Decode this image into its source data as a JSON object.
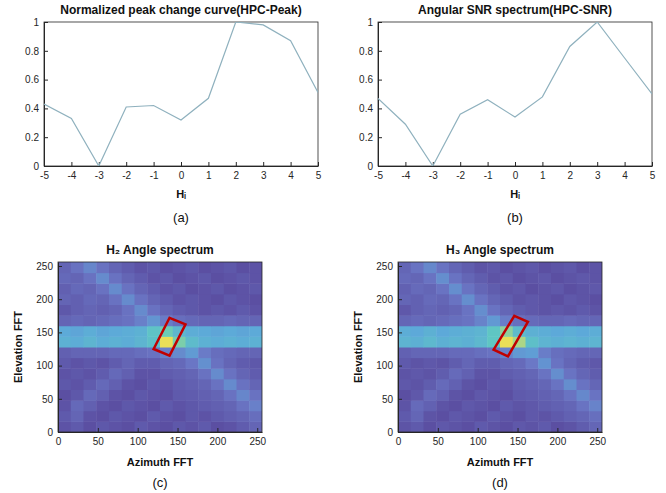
{
  "chart_data": [
    {
      "type": "line",
      "title": "Normalized peak change curve(HPC-Peak)",
      "label": "(a)",
      "xlabel": "Hᵢ",
      "x": [
        -5,
        -4,
        -3,
        -2,
        -1,
        0,
        1,
        2,
        3,
        4,
        5
      ],
      "values": [
        0.43,
        0.33,
        0,
        0.41,
        0.42,
        0.32,
        0.47,
        1.0,
        0.98,
        0.87,
        0.51
      ],
      "color": "#8fb1be",
      "xlim": [
        -5,
        5
      ],
      "ylim": [
        0,
        1
      ],
      "xticks": [
        -5,
        -4,
        -3,
        -2,
        -1,
        0,
        1,
        2,
        3,
        4,
        5
      ],
      "yticks": [
        0,
        0.2,
        0.4,
        0.6,
        0.8,
        1
      ]
    },
    {
      "type": "line",
      "title": "Angular SNR spectrum(HPC-SNR)",
      "label": "(b)",
      "xlabel": "Hᵢ",
      "x": [
        -5,
        -4,
        -3,
        -2,
        -1,
        0,
        1,
        2,
        3,
        4,
        5
      ],
      "values": [
        0.47,
        0.29,
        0,
        0.36,
        0.46,
        0.34,
        0.48,
        0.83,
        1.0,
        0.75,
        0.5
      ],
      "color": "#8fb1be",
      "xlim": [
        -5,
        5
      ],
      "ylim": [
        0,
        1
      ],
      "xticks": [
        -5,
        -4,
        -3,
        -2,
        -1,
        0,
        1,
        2,
        3,
        4,
        5
      ],
      "yticks": [
        0,
        0.2,
        0.4,
        0.6,
        0.8,
        1
      ]
    },
    {
      "type": "heatmap",
      "title": "H₂ Angle spectrum",
      "label": "(c)",
      "xlabel": "Azimuth FFT",
      "ylabel": "Elevation FFT",
      "x_edges": [
        0,
        16,
        32,
        48,
        64,
        80,
        96,
        112,
        128,
        144,
        160,
        176,
        192,
        208,
        224,
        240,
        256
      ],
      "y_edges": [
        0,
        16,
        32,
        48,
        64,
        80,
        96,
        112,
        128,
        144,
        160,
        176,
        192,
        208,
        224,
        240,
        256
      ],
      "z": [
        [
          0.22,
          0.25,
          0.2,
          0.24,
          0.22,
          0.2,
          0.25,
          0.22,
          0.2,
          0.24,
          0.22,
          0.25,
          0.2,
          0.22,
          0.26,
          0.3
        ],
        [
          0.25,
          0.3,
          0.22,
          0.2,
          0.24,
          0.22,
          0.2,
          0.25,
          0.22,
          0.2,
          0.24,
          0.22,
          0.25,
          0.28,
          0.3,
          0.34
        ],
        [
          0.22,
          0.32,
          0.28,
          0.22,
          0.2,
          0.24,
          0.22,
          0.2,
          0.25,
          0.22,
          0.24,
          0.26,
          0.28,
          0.3,
          0.36,
          0.42
        ],
        [
          0.2,
          0.24,
          0.32,
          0.28,
          0.22,
          0.2,
          0.24,
          0.22,
          0.2,
          0.25,
          0.26,
          0.28,
          0.3,
          0.36,
          0.44,
          0.36
        ],
        [
          0.24,
          0.22,
          0.26,
          0.32,
          0.28,
          0.22,
          0.2,
          0.24,
          0.22,
          0.26,
          0.28,
          0.3,
          0.36,
          0.46,
          0.36,
          0.3
        ],
        [
          0.22,
          0.24,
          0.22,
          0.26,
          0.32,
          0.28,
          0.22,
          0.22,
          0.26,
          0.28,
          0.3,
          0.36,
          0.46,
          0.36,
          0.3,
          0.26
        ],
        [
          0.25,
          0.22,
          0.24,
          0.22,
          0.26,
          0.3,
          0.26,
          0.26,
          0.3,
          0.32,
          0.38,
          0.48,
          0.36,
          0.3,
          0.26,
          0.24
        ],
        [
          0.28,
          0.3,
          0.3,
          0.3,
          0.32,
          0.32,
          0.34,
          0.36,
          0.42,
          0.46,
          0.52,
          0.4,
          0.34,
          0.32,
          0.3,
          0.3
        ],
        [
          0.62,
          0.6,
          0.64,
          0.6,
          0.62,
          0.6,
          0.64,
          0.7,
          0.95,
          0.8,
          0.68,
          0.62,
          0.6,
          0.62,
          0.6,
          0.62
        ],
        [
          0.58,
          0.56,
          0.6,
          0.56,
          0.58,
          0.6,
          0.62,
          0.72,
          0.78,
          0.66,
          0.6,
          0.58,
          0.56,
          0.58,
          0.56,
          0.58
        ],
        [
          0.3,
          0.32,
          0.3,
          0.32,
          0.34,
          0.36,
          0.42,
          0.5,
          0.4,
          0.34,
          0.32,
          0.3,
          0.3,
          0.32,
          0.3,
          0.3
        ],
        [
          0.24,
          0.28,
          0.3,
          0.28,
          0.3,
          0.36,
          0.46,
          0.36,
          0.3,
          0.26,
          0.24,
          0.22,
          0.24,
          0.22,
          0.25,
          0.22
        ],
        [
          0.3,
          0.28,
          0.32,
          0.3,
          0.36,
          0.46,
          0.36,
          0.3,
          0.26,
          0.22,
          0.24,
          0.22,
          0.2,
          0.24,
          0.22,
          0.2
        ],
        [
          0.28,
          0.32,
          0.3,
          0.36,
          0.46,
          0.36,
          0.3,
          0.26,
          0.22,
          0.24,
          0.2,
          0.22,
          0.24,
          0.2,
          0.22,
          0.24
        ],
        [
          0.32,
          0.3,
          0.36,
          0.46,
          0.36,
          0.3,
          0.26,
          0.22,
          0.24,
          0.2,
          0.22,
          0.24,
          0.2,
          0.22,
          0.24,
          0.22
        ],
        [
          0.3,
          0.36,
          0.44,
          0.36,
          0.3,
          0.26,
          0.22,
          0.24,
          0.2,
          0.22,
          0.24,
          0.2,
          0.22,
          0.24,
          0.2,
          0.22
        ]
      ],
      "xlim": [
        0,
        256
      ],
      "ylim": [
        0,
        256
      ],
      "xticks": [
        0,
        50,
        100,
        150,
        200,
        250
      ],
      "yticks": [
        0,
        50,
        100,
        150,
        200,
        250
      ],
      "highlight": {
        "x": [
          140,
          160,
          140,
          120
        ],
        "y": [
          172,
          162,
          115,
          125
        ],
        "color": "#c00000"
      }
    },
    {
      "type": "heatmap",
      "title": "H₃ Angle spectrum",
      "label": "(d)",
      "xlabel": "Azimuth FFT",
      "ylabel": "Elevation FFT",
      "x_edges": [
        0,
        16,
        32,
        48,
        64,
        80,
        96,
        112,
        128,
        144,
        160,
        176,
        192,
        208,
        224,
        240,
        256
      ],
      "y_edges": [
        0,
        16,
        32,
        48,
        64,
        80,
        96,
        112,
        128,
        144,
        160,
        176,
        192,
        208,
        224,
        240,
        256
      ],
      "z": [
        [
          0.22,
          0.25,
          0.2,
          0.24,
          0.22,
          0.2,
          0.25,
          0.22,
          0.2,
          0.24,
          0.22,
          0.25,
          0.2,
          0.22,
          0.26,
          0.3
        ],
        [
          0.25,
          0.3,
          0.22,
          0.2,
          0.24,
          0.22,
          0.2,
          0.25,
          0.22,
          0.2,
          0.24,
          0.22,
          0.25,
          0.28,
          0.3,
          0.34
        ],
        [
          0.22,
          0.32,
          0.28,
          0.22,
          0.2,
          0.24,
          0.22,
          0.2,
          0.25,
          0.22,
          0.24,
          0.26,
          0.28,
          0.3,
          0.36,
          0.42
        ],
        [
          0.2,
          0.24,
          0.32,
          0.28,
          0.22,
          0.2,
          0.24,
          0.22,
          0.2,
          0.25,
          0.26,
          0.28,
          0.3,
          0.36,
          0.44,
          0.36
        ],
        [
          0.24,
          0.22,
          0.26,
          0.32,
          0.28,
          0.22,
          0.2,
          0.24,
          0.22,
          0.26,
          0.28,
          0.3,
          0.36,
          0.46,
          0.36,
          0.3
        ],
        [
          0.22,
          0.24,
          0.22,
          0.26,
          0.32,
          0.28,
          0.22,
          0.22,
          0.26,
          0.28,
          0.3,
          0.36,
          0.46,
          0.36,
          0.3,
          0.26
        ],
        [
          0.25,
          0.22,
          0.24,
          0.22,
          0.26,
          0.3,
          0.26,
          0.26,
          0.3,
          0.32,
          0.38,
          0.48,
          0.36,
          0.3,
          0.26,
          0.24
        ],
        [
          0.28,
          0.3,
          0.3,
          0.3,
          0.32,
          0.32,
          0.34,
          0.36,
          0.42,
          0.5,
          0.52,
          0.4,
          0.34,
          0.32,
          0.3,
          0.3
        ],
        [
          0.62,
          0.6,
          0.64,
          0.6,
          0.62,
          0.6,
          0.64,
          0.72,
          0.92,
          0.84,
          0.68,
          0.62,
          0.6,
          0.62,
          0.6,
          0.62
        ],
        [
          0.58,
          0.56,
          0.6,
          0.56,
          0.58,
          0.6,
          0.62,
          0.72,
          0.8,
          0.66,
          0.6,
          0.58,
          0.56,
          0.58,
          0.56,
          0.58
        ],
        [
          0.3,
          0.32,
          0.3,
          0.32,
          0.34,
          0.36,
          0.42,
          0.5,
          0.4,
          0.34,
          0.32,
          0.3,
          0.3,
          0.32,
          0.3,
          0.3
        ],
        [
          0.24,
          0.28,
          0.3,
          0.28,
          0.3,
          0.36,
          0.46,
          0.36,
          0.3,
          0.26,
          0.24,
          0.22,
          0.24,
          0.22,
          0.25,
          0.22
        ],
        [
          0.3,
          0.28,
          0.32,
          0.3,
          0.36,
          0.46,
          0.36,
          0.3,
          0.26,
          0.22,
          0.24,
          0.22,
          0.2,
          0.24,
          0.22,
          0.2
        ],
        [
          0.28,
          0.32,
          0.3,
          0.36,
          0.46,
          0.36,
          0.3,
          0.26,
          0.22,
          0.24,
          0.2,
          0.22,
          0.24,
          0.2,
          0.22,
          0.24
        ],
        [
          0.32,
          0.3,
          0.36,
          0.46,
          0.36,
          0.3,
          0.26,
          0.22,
          0.24,
          0.2,
          0.22,
          0.24,
          0.2,
          0.22,
          0.24,
          0.22
        ],
        [
          0.3,
          0.36,
          0.44,
          0.36,
          0.3,
          0.26,
          0.22,
          0.24,
          0.2,
          0.22,
          0.24,
          0.2,
          0.22,
          0.24,
          0.2,
          0.22
        ]
      ],
      "xlim": [
        0,
        256
      ],
      "ylim": [
        0,
        256
      ],
      "xticks": [
        0,
        50,
        100,
        150,
        200,
        250
      ],
      "yticks": [
        0,
        50,
        100,
        150,
        200,
        250
      ],
      "highlight": {
        "x": [
          146,
          163,
          138,
          120
        ],
        "y": [
          175,
          166,
          114,
          124
        ],
        "color": "#c00000"
      }
    }
  ]
}
